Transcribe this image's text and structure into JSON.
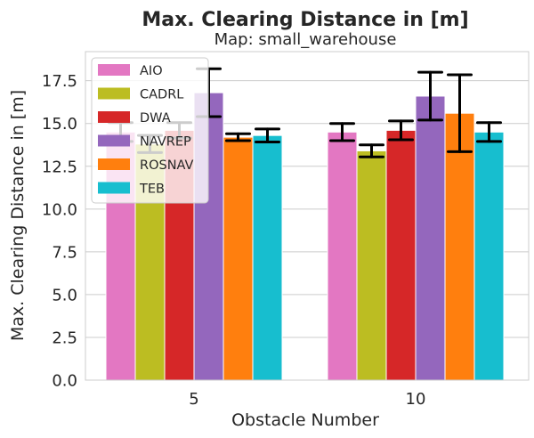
{
  "chart_data": {
    "type": "bar",
    "title": "Max. Clearing Distance in [m]",
    "subtitle": "Map: small_warehouse",
    "xlabel": "Obstacle Number",
    "ylabel": "Max. Clearing Distance in [m]",
    "categories": [
      "5",
      "10"
    ],
    "ylim": [
      0,
      19.2
    ],
    "yticks": [
      "0.0",
      "2.5",
      "5.0",
      "7.5",
      "10.0",
      "12.5",
      "15.0",
      "17.5"
    ],
    "grid": true,
    "legend_position": "top-left",
    "series": [
      {
        "name": "AIO",
        "color": "#e377c2",
        "values": [
          14.5,
          14.5
        ],
        "err": [
          0.55,
          0.5
        ]
      },
      {
        "name": "CADRL",
        "color": "#bcbd22",
        "values": [
          13.8,
          13.4
        ],
        "err": [
          0.5,
          0.35
        ]
      },
      {
        "name": "DWA",
        "color": "#d62728",
        "values": [
          14.6,
          14.6
        ],
        "err": [
          0.45,
          0.55
        ]
      },
      {
        "name": "NAVREP",
        "color": "#9467bd",
        "values": [
          16.8,
          16.6
        ],
        "err": [
          1.4,
          1.4
        ]
      },
      {
        "name": "ROSNAV",
        "color": "#ff7f0e",
        "values": [
          14.2,
          15.6
        ],
        "err": [
          0.2,
          2.25
        ]
      },
      {
        "name": "TEB",
        "color": "#17becf",
        "values": [
          14.3,
          14.5
        ],
        "err": [
          0.38,
          0.55
        ]
      }
    ]
  }
}
